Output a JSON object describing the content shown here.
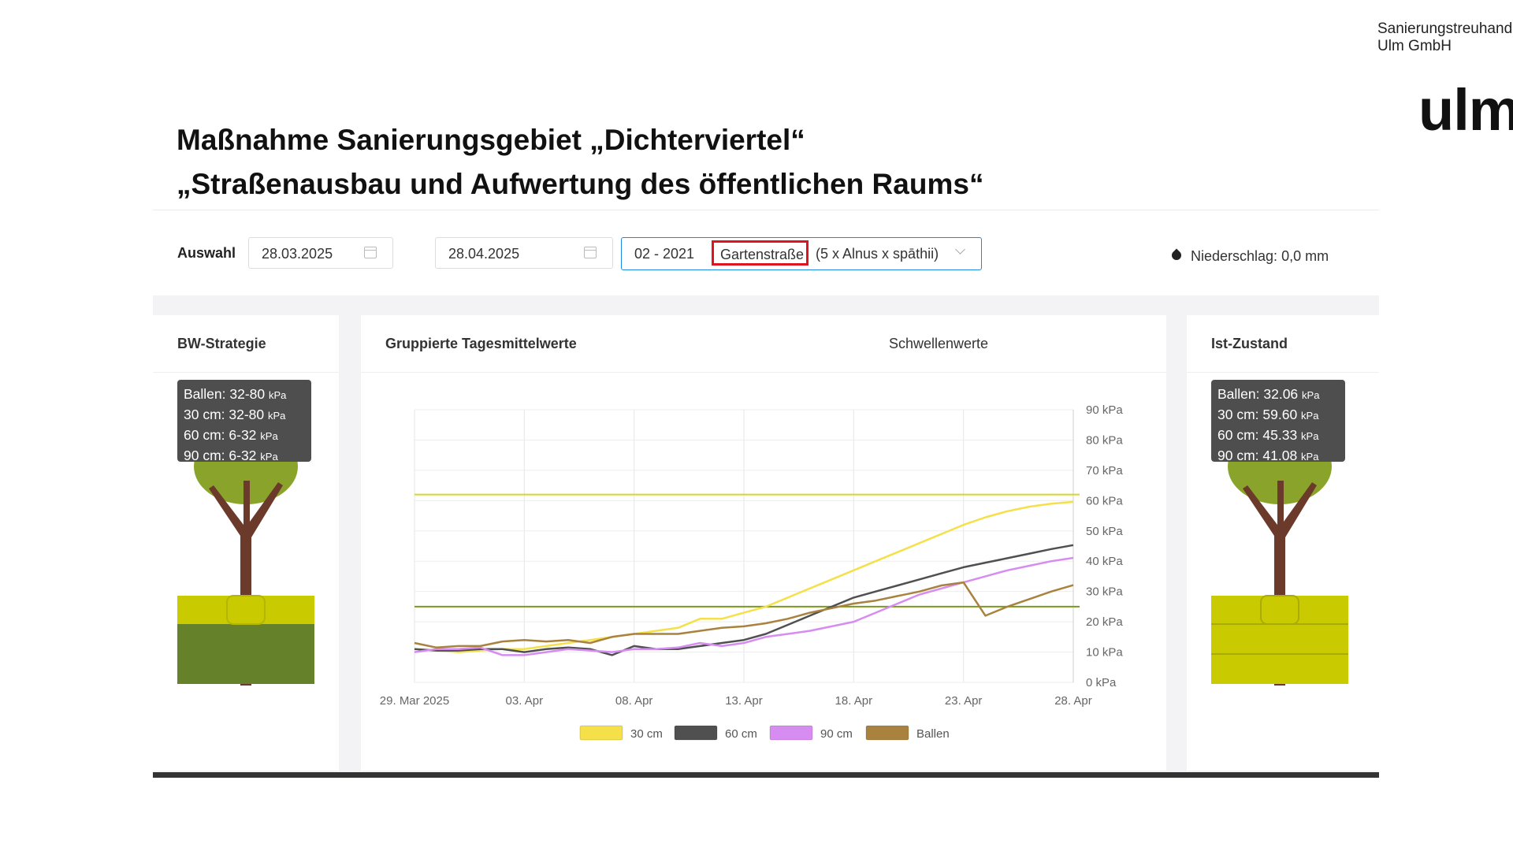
{
  "org": {
    "line1": "Sanierungstreuhand",
    "line2": "Ulm GmbH",
    "logo": "ulm"
  },
  "title": {
    "line1": "Maßnahme Sanierungsgebiet „Dichterviertel“",
    "line2": "„Straßenausbau und Aufwertung des öffentlichen Raums“"
  },
  "toolbar": {
    "selection_label": "Auswahl",
    "date_from": "28.03.2025",
    "date_to": "28.04.2025",
    "plant_code": "02 - 2021",
    "plant_street": "Gartenstraße",
    "plant_species": "(5 x Alnus x spāthii)",
    "precip_label": "Niederschlag:",
    "precip_value": "0,0",
    "precip_unit": "mm"
  },
  "left_panel": {
    "title": "BW-Strategie",
    "rows": [
      {
        "label": "Ballen: 32-80",
        "unit": "kPa"
      },
      {
        "label": "30 cm: 32-80",
        "unit": "kPa"
      },
      {
        "label": "60 cm: 6-32",
        "unit": "kPa"
      },
      {
        "label": "90 cm: 6-32",
        "unit": "kPa"
      }
    ]
  },
  "right_panel": {
    "title": "Ist-Zustand",
    "rows": [
      {
        "label": "Ballen: 32.06",
        "unit": "kPa"
      },
      {
        "label": "30 cm: 59.60",
        "unit": "kPa"
      },
      {
        "label": "60 cm: 45.33",
        "unit": "kPa"
      },
      {
        "label": "90 cm: 41.08",
        "unit": "kPa"
      }
    ]
  },
  "chart_panel": {
    "title": "Gruppierte Tagesmittelwerte",
    "threshold_label": "Schwellenwerte",
    "threshold_on": true
  },
  "colors": {
    "accent": "#1e88e5",
    "c30": "#f5e04a",
    "c60": "#505050",
    "c90": "#d68cf0",
    "cBallen": "#a8823e",
    "threshold_high": "#d6d62a",
    "threshold_low": "#7a9a1a"
  },
  "chart_data": {
    "type": "line",
    "title": "Gruppierte Tagesmittelwerte",
    "x": [
      0,
      1,
      2,
      3,
      4,
      5,
      6,
      7,
      8,
      9,
      10,
      11,
      12,
      13,
      14,
      15,
      16,
      17,
      18,
      19,
      20,
      21,
      22,
      23,
      24,
      25,
      26,
      27,
      28,
      29,
      30
    ],
    "x_ticks": [
      {
        "x": 0,
        "label": "29. Mar 2025"
      },
      {
        "x": 5,
        "label": "03. Apr"
      },
      {
        "x": 10,
        "label": "08. Apr"
      },
      {
        "x": 15,
        "label": "13. Apr"
      },
      {
        "x": 20,
        "label": "18. Apr"
      },
      {
        "x": 25,
        "label": "23. Apr"
      },
      {
        "x": 30,
        "label": "28. Apr"
      }
    ],
    "ylim": [
      0,
      90
    ],
    "y_ticks": [
      0,
      10,
      20,
      30,
      40,
      50,
      60,
      70,
      80,
      90
    ],
    "y_unit": "kPa",
    "thresholds": [
      62,
      25
    ],
    "series": [
      {
        "name": "30 cm",
        "color": "#f5e04a",
        "values": [
          11,
          10.5,
          10,
          10.5,
          11,
          11,
          12,
          13,
          14,
          15,
          16,
          17,
          18,
          21,
          21,
          23,
          25,
          28,
          31,
          34,
          37,
          40,
          43,
          46,
          49,
          52,
          54.5,
          56.5,
          58,
          59,
          59.6
        ]
      },
      {
        "name": "60 cm",
        "color": "#505050",
        "values": [
          11,
          10.5,
          10.5,
          11,
          11,
          10,
          11,
          11.5,
          11,
          9,
          12,
          11,
          11,
          12,
          13,
          14,
          16,
          19,
          22,
          25,
          28,
          30,
          32,
          34,
          36,
          38,
          39.5,
          41,
          42.5,
          44,
          45.3
        ]
      },
      {
        "name": "90 cm",
        "color": "#d68cf0",
        "values": [
          10,
          11,
          11,
          11.5,
          9,
          9,
          10,
          11,
          10.5,
          10,
          11,
          11,
          11.5,
          13,
          12,
          13,
          15,
          16,
          17,
          18.5,
          20,
          23,
          26,
          29,
          31,
          33,
          35,
          37,
          38.5,
          40,
          41.1
        ]
      },
      {
        "name": "Ballen",
        "color": "#a8823e",
        "values": [
          13,
          11.5,
          12,
          12,
          13.5,
          14,
          13.5,
          14,
          13,
          15,
          16,
          16,
          16,
          17,
          18,
          18.5,
          19.5,
          21,
          23,
          24.5,
          26,
          27,
          28.5,
          30,
          32,
          33,
          22,
          25,
          27.5,
          30,
          32.1
        ]
      }
    ],
    "legend": [
      "30 cm",
      "60 cm",
      "90 cm",
      "Ballen"
    ],
    "legend_position": "bottom-center",
    "grid": true
  }
}
